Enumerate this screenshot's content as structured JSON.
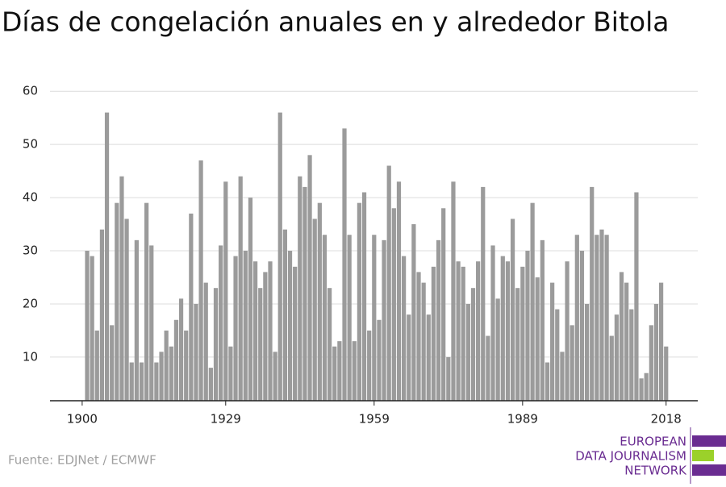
{
  "chart_data": {
    "type": "bar",
    "title": "Días de congelación anuales en y alrededor Bitola",
    "source": "Fuente: EDJNet / ECMWF",
    "logo": [
      "EUROPEAN",
      "DATA JOURNALISM",
      "NETWORK"
    ],
    "color": "#9b9b9b",
    "grid": true,
    "x": [
      1901,
      1902,
      1903,
      1904,
      1905,
      1906,
      1907,
      1908,
      1909,
      1910,
      1911,
      1912,
      1913,
      1914,
      1915,
      1916,
      1917,
      1918,
      1919,
      1920,
      1921,
      1922,
      1923,
      1924,
      1925,
      1926,
      1927,
      1928,
      1929,
      1930,
      1931,
      1932,
      1933,
      1934,
      1935,
      1936,
      1937,
      1938,
      1939,
      1940,
      1941,
      1942,
      1943,
      1944,
      1945,
      1946,
      1947,
      1948,
      1949,
      1950,
      1951,
      1952,
      1953,
      1954,
      1955,
      1956,
      1957,
      1958,
      1959,
      1960,
      1961,
      1962,
      1963,
      1964,
      1965,
      1966,
      1967,
      1968,
      1969,
      1970,
      1971,
      1972,
      1973,
      1974,
      1975,
      1976,
      1977,
      1978,
      1979,
      1980,
      1981,
      1982,
      1983,
      1984,
      1985,
      1986,
      1987,
      1988,
      1989,
      1990,
      1991,
      1992,
      1993,
      1994,
      1995,
      1996,
      1997,
      1998,
      1999,
      2000,
      2001,
      2002,
      2003,
      2004,
      2005,
      2006,
      2007,
      2008,
      2009,
      2010,
      2011,
      2012,
      2013,
      2014,
      2015,
      2016,
      2017,
      2018
    ],
    "values": [
      30,
      29,
      15,
      34,
      56,
      16,
      39,
      44,
      36,
      9,
      32,
      9,
      39,
      31,
      9,
      11,
      15,
      12,
      17,
      21,
      15,
      37,
      20,
      47,
      24,
      8,
      23,
      31,
      43,
      12,
      29,
      44,
      30,
      40,
      28,
      23,
      26,
      28,
      11,
      56,
      34,
      30,
      27,
      44,
      42,
      48,
      36,
      39,
      33,
      23,
      12,
      13,
      53,
      33,
      13,
      39,
      41,
      15,
      33,
      17,
      32,
      46,
      38,
      43,
      29,
      18,
      35,
      26,
      24,
      18,
      27,
      32,
      38,
      10,
      43,
      28,
      27,
      20,
      23,
      28,
      42,
      14,
      31,
      21,
      29,
      28,
      36,
      23,
      27,
      30,
      39,
      25,
      32,
      9,
      24,
      19,
      11,
      28,
      16,
      33,
      30,
      20,
      42,
      33,
      34,
      33,
      14,
      18,
      26,
      24,
      19,
      41,
      6,
      7,
      16,
      20,
      24,
      12
    ],
    "xlim": [
      1893.5,
      2024.4
    ],
    "xticks": [
      1900,
      1929,
      1959,
      1989,
      2018
    ],
    "ylim": [
      1.8,
      62
    ],
    "yticks": [
      10,
      20,
      30,
      40,
      50,
      60
    ]
  }
}
